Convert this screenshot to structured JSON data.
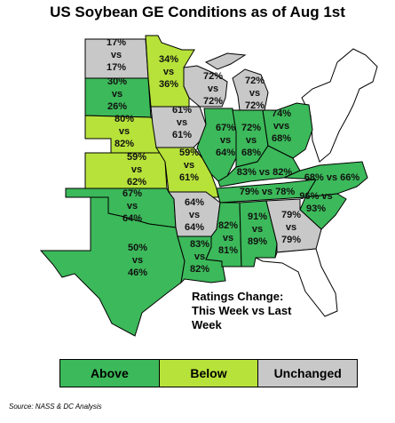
{
  "title": "US Soybean GE Conditions as of Aug 1st",
  "colors": {
    "above": "#3cb95a",
    "below": "#b7e23a",
    "unchanged": "#c8c8c8",
    "outline": "#000000"
  },
  "states": [
    {
      "id": "ND",
      "status": "unchanged",
      "label": [
        "17%",
        "vs",
        "17%"
      ]
    },
    {
      "id": "SD",
      "status": "above",
      "label": [
        "30%",
        "vs",
        "26%"
      ]
    },
    {
      "id": "MN",
      "status": "below",
      "label": [
        "34%",
        "vs",
        "36%"
      ]
    },
    {
      "id": "NE",
      "status": "below",
      "label": [
        "80%",
        "vs",
        "82%"
      ]
    },
    {
      "id": "KS",
      "status": "below",
      "label": [
        "59%",
        "vs",
        "62%"
      ]
    },
    {
      "id": "IA",
      "status": "unchanged",
      "label": [
        "61%",
        "vs",
        "61%"
      ]
    },
    {
      "id": "MO",
      "status": "below",
      "label": [
        "59%",
        "vs",
        "61%"
      ]
    },
    {
      "id": "WI",
      "status": "unchanged",
      "label": [
        "72%",
        "vs",
        "72%"
      ]
    },
    {
      "id": "MI",
      "status": "unchanged",
      "label": [
        "72%",
        "vs",
        "72%"
      ]
    },
    {
      "id": "IL",
      "status": "above",
      "label": [
        "67%",
        "vs",
        "64%"
      ]
    },
    {
      "id": "IN",
      "status": "above",
      "label": [
        "72%",
        "vs",
        "68%"
      ]
    },
    {
      "id": "OH",
      "status": "above",
      "label": [
        "74%",
        "vvs",
        "68%"
      ]
    },
    {
      "id": "KY",
      "status": "above",
      "label": [
        "83% vs 82%"
      ]
    },
    {
      "id": "TN",
      "status": "above",
      "label": [
        "79% vs 78%"
      ]
    },
    {
      "id": "NC",
      "status": "above",
      "label": [
        "68% vs 66%"
      ]
    },
    {
      "id": "SC",
      "status": "above",
      "label": [
        "96% vs",
        "93%"
      ]
    },
    {
      "id": "OK",
      "status": "above",
      "label": [
        "67%",
        "vs",
        "64%"
      ]
    },
    {
      "id": "AR",
      "status": "unchanged",
      "label": [
        "64%",
        "vs",
        "64%"
      ]
    },
    {
      "id": "TX",
      "status": "above",
      "label": [
        "50%",
        "vs",
        "46%"
      ]
    },
    {
      "id": "LA",
      "status": "above",
      "label": [
        "83%",
        "vs",
        "82%"
      ]
    },
    {
      "id": "MS",
      "status": "above",
      "label": [
        "82%",
        "vs",
        "81%"
      ]
    },
    {
      "id": "AL",
      "status": "above",
      "label": [
        "91%",
        "vs",
        "89%"
      ]
    },
    {
      "id": "GA",
      "status": "unchanged",
      "label": [
        "79%",
        "vs",
        "79%"
      ]
    },
    {
      "id": "FL",
      "status": "none",
      "label": []
    },
    {
      "id": "NE-region",
      "status": "none",
      "label": []
    }
  ],
  "note": [
    "Ratings Change:",
    "This Week vs Last",
    "Week"
  ],
  "legend": {
    "above": "Above",
    "below": "Below",
    "unchanged": "Unchanged"
  },
  "source": "Source: NASS & DC Analysis"
}
